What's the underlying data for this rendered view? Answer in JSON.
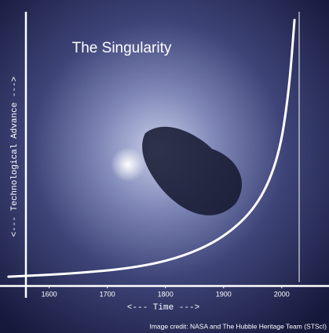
{
  "chart_data": {
    "type": "line",
    "title": "The Singularity",
    "x_label": "<--- Time --->",
    "y_label": "<--- Technological Advance --->",
    "credit": "Image credit: NASA and The Hubble Heritage Team (STScI)",
    "x": [
      1530,
      1650,
      1760,
      1840,
      1907,
      1961,
      1995,
      2012,
      2022
    ],
    "series": [
      {
        "color": "#ffffff",
        "values": [
          3.4,
          4.6,
          7,
          11.4,
          18.6,
          30,
          47,
          70,
          97
        ]
      }
    ],
    "xlim": [
      1560,
      2030
    ],
    "ylim": [
      0,
      100
    ],
    "xticks": [
      1600,
      1700,
      1800,
      1900,
      2000
    ]
  }
}
